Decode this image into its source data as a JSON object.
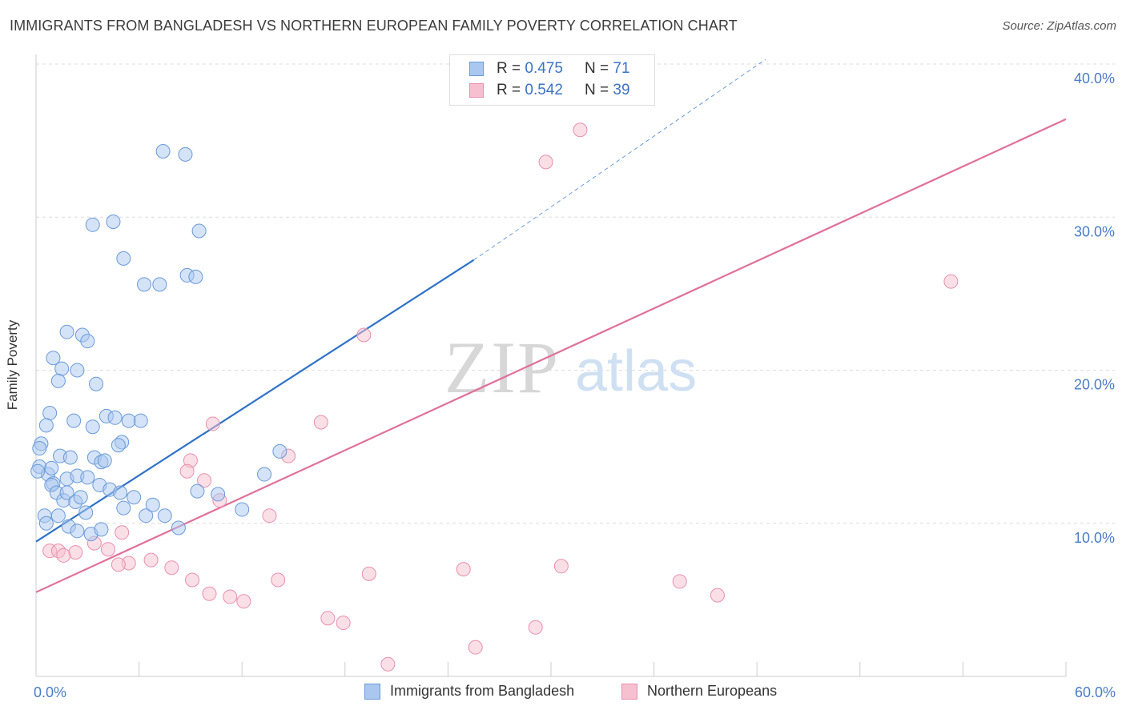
{
  "title": "IMMIGRANTS FROM BANGLADESH VS NORTHERN EUROPEAN FAMILY POVERTY CORRELATION CHART",
  "source": "Source: ZipAtlas.com",
  "watermark": {
    "zip": "ZIP",
    "atlas": "atlas"
  },
  "legend_top": {
    "rows": [
      {
        "r_label": "R = ",
        "r_value": "0.475",
        "n_label": "N = ",
        "n_value": "71"
      },
      {
        "r_label": "R = ",
        "r_value": "0.542",
        "n_label": "N = ",
        "n_value": "39"
      }
    ]
  },
  "colors": {
    "blue_fill": "#aac8ef",
    "blue_stroke": "#6a9ad8",
    "blue_line": "#2f72c8",
    "pink_fill": "#f6c0d0",
    "pink_stroke": "#e890ac",
    "pink_line": "#e0709a",
    "tick_text": "#4a7cc7",
    "grid": "#dcdcdc"
  },
  "chart_data": {
    "type": "scatter",
    "title": "IMMIGRANTS FROM BANGLADESH VS NORTHERN EUROPEAN FAMILY POVERTY CORRELATION CHART",
    "xlabel": "",
    "ylabel": "Family Poverty",
    "xlim": [
      0,
      60
    ],
    "ylim": [
      0,
      40
    ],
    "x_tick_labels": [
      "0.0%",
      "60.0%"
    ],
    "y_tick_labels": [
      "10.0%",
      "20.0%",
      "30.0%",
      "40.0%"
    ],
    "y_tick_values": [
      10,
      20,
      30,
      40
    ],
    "legend_position": "bottom",
    "grid": true,
    "series": [
      {
        "name": "Immigrants from Bangladesh",
        "r": 0.475,
        "n": 71,
        "trend": {
          "x0": 0,
          "y0": 8.8,
          "x1": 25.5,
          "y1": 27.2,
          "dashed_to_x": 42.5,
          "dashed_to_y": 40.3
        },
        "points": [
          [
            3.3,
            29.5
          ],
          [
            4.5,
            29.7
          ],
          [
            7.4,
            34.3
          ],
          [
            8.7,
            34.1
          ],
          [
            8.8,
            26.2
          ],
          [
            9.5,
            29.1
          ],
          [
            9.3,
            26.1
          ],
          [
            5.1,
            27.3
          ],
          [
            6.3,
            25.6
          ],
          [
            7.2,
            25.6
          ],
          [
            1.8,
            22.5
          ],
          [
            2.7,
            22.3
          ],
          [
            3.0,
            21.9
          ],
          [
            1.0,
            20.8
          ],
          [
            1.5,
            20.1
          ],
          [
            2.4,
            20.0
          ],
          [
            1.3,
            19.3
          ],
          [
            3.5,
            19.1
          ],
          [
            0.8,
            17.2
          ],
          [
            4.1,
            17.0
          ],
          [
            2.2,
            16.7
          ],
          [
            3.3,
            16.3
          ],
          [
            4.6,
            16.9
          ],
          [
            0.6,
            16.4
          ],
          [
            5.4,
            16.7
          ],
          [
            6.1,
            16.7
          ],
          [
            5.0,
            15.3
          ],
          [
            4.8,
            15.1
          ],
          [
            0.3,
            15.2
          ],
          [
            0.2,
            14.9
          ],
          [
            1.4,
            14.4
          ],
          [
            2.0,
            14.3
          ],
          [
            3.4,
            14.3
          ],
          [
            3.8,
            14.0
          ],
          [
            4.0,
            14.1
          ],
          [
            0.2,
            13.7
          ],
          [
            0.7,
            13.2
          ],
          [
            0.9,
            13.6
          ],
          [
            1.0,
            12.6
          ],
          [
            1.8,
            12.9
          ],
          [
            2.4,
            13.1
          ],
          [
            3.0,
            13.0
          ],
          [
            3.7,
            12.5
          ],
          [
            4.3,
            12.2
          ],
          [
            5.7,
            11.7
          ],
          [
            4.9,
            12.0
          ],
          [
            0.9,
            12.5
          ],
          [
            1.2,
            12.0
          ],
          [
            1.6,
            11.5
          ],
          [
            1.8,
            12.0
          ],
          [
            2.3,
            11.4
          ],
          [
            2.6,
            11.7
          ],
          [
            2.9,
            10.7
          ],
          [
            0.5,
            10.5
          ],
          [
            1.3,
            10.5
          ],
          [
            1.9,
            9.8
          ],
          [
            0.6,
            10.0
          ],
          [
            2.4,
            9.5
          ],
          [
            3.2,
            9.3
          ],
          [
            3.8,
            9.6
          ],
          [
            5.1,
            11.0
          ],
          [
            6.4,
            10.5
          ],
          [
            6.8,
            11.2
          ],
          [
            7.5,
            10.5
          ],
          [
            8.3,
            9.7
          ],
          [
            9.4,
            12.1
          ],
          [
            10.6,
            11.9
          ],
          [
            12.0,
            10.9
          ],
          [
            13.3,
            13.2
          ],
          [
            14.2,
            14.7
          ],
          [
            0.1,
            13.4
          ]
        ]
      },
      {
        "name": "Northern Europeans",
        "r": 0.542,
        "n": 39,
        "trend": {
          "x0": 0,
          "y0": 5.5,
          "x1": 60,
          "y1": 36.4
        },
        "points": [
          [
            27.4,
            38.4
          ],
          [
            31.7,
            35.7
          ],
          [
            29.7,
            33.6
          ],
          [
            53.3,
            25.8
          ],
          [
            19.1,
            22.3
          ],
          [
            16.6,
            16.6
          ],
          [
            10.3,
            16.5
          ],
          [
            14.7,
            14.4
          ],
          [
            9.0,
            14.1
          ],
          [
            8.8,
            13.4
          ],
          [
            9.8,
            12.8
          ],
          [
            10.7,
            11.5
          ],
          [
            13.6,
            10.5
          ],
          [
            5.0,
            9.4
          ],
          [
            3.4,
            8.7
          ],
          [
            4.2,
            8.3
          ],
          [
            0.8,
            8.2
          ],
          [
            1.3,
            8.2
          ],
          [
            2.3,
            8.1
          ],
          [
            1.6,
            7.9
          ],
          [
            6.7,
            7.6
          ],
          [
            5.4,
            7.4
          ],
          [
            4.8,
            7.3
          ],
          [
            7.9,
            7.1
          ],
          [
            9.1,
            6.3
          ],
          [
            14.1,
            6.3
          ],
          [
            19.4,
            6.7
          ],
          [
            24.9,
            7.0
          ],
          [
            30.6,
            7.2
          ],
          [
            10.1,
            5.4
          ],
          [
            11.3,
            5.2
          ],
          [
            12.1,
            4.9
          ],
          [
            17.0,
            3.8
          ],
          [
            17.9,
            3.5
          ],
          [
            20.5,
            0.8
          ],
          [
            29.1,
            3.2
          ],
          [
            25.6,
            1.9
          ],
          [
            37.5,
            6.2
          ],
          [
            39.7,
            5.3
          ]
        ]
      }
    ]
  },
  "legend_bottom": [
    "Immigrants from Bangladesh",
    "Northern Europeans"
  ]
}
